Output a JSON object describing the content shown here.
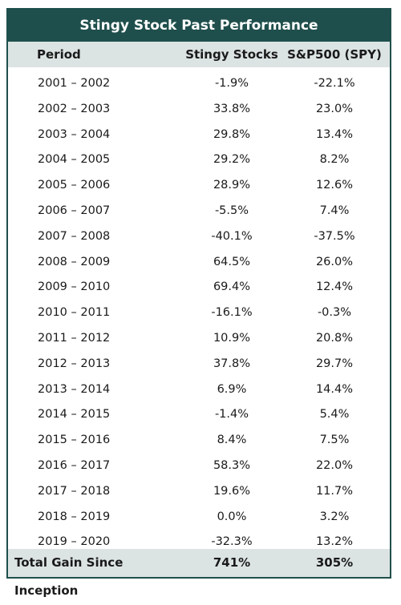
{
  "title": "Stingy Stock Past Performance",
  "headers": {
    "period": "Period",
    "stingy": "Stingy Stocks",
    "spy": "S&P500 (SPY)"
  },
  "rows": [
    {
      "period": "2001 – 2002",
      "stingy": "-1.9%",
      "spy": "-22.1%"
    },
    {
      "period": "2002 – 2003",
      "stingy": "33.8%",
      "spy": "23.0%"
    },
    {
      "period": "2003 – 2004",
      "stingy": "29.8%",
      "spy": "13.4%"
    },
    {
      "period": "2004 – 2005",
      "stingy": "29.2%",
      "spy": "8.2%"
    },
    {
      "period": "2005 – 2006",
      "stingy": "28.9%",
      "spy": "12.6%"
    },
    {
      "period": "2006 – 2007",
      "stingy": "-5.5%",
      "spy": "7.4%"
    },
    {
      "period": "2007 – 2008",
      "stingy": "-40.1%",
      "spy": "-37.5%"
    },
    {
      "period": "2008 – 2009",
      "stingy": "64.5%",
      "spy": "26.0%"
    },
    {
      "period": "2009 – 2010",
      "stingy": "69.4%",
      "spy": "12.4%"
    },
    {
      "period": "2010 – 2011",
      "stingy": "-16.1%",
      "spy": "-0.3%"
    },
    {
      "period": "2011 – 2012",
      "stingy": "10.9%",
      "spy": "20.8%"
    },
    {
      "period": "2012 – 2013",
      "stingy": "37.8%",
      "spy": "29.7%"
    },
    {
      "period": "2013 – 2014",
      "stingy": "6.9%",
      "spy": "14.4%"
    },
    {
      "period": "2014 – 2015",
      "stingy": "-1.4%",
      "spy": "5.4%"
    },
    {
      "period": "2015 – 2016",
      "stingy": "8.4%",
      "spy": "7.5%"
    },
    {
      "period": "2016 – 2017",
      "stingy": "58.3%",
      "spy": "22.0%"
    },
    {
      "period": "2017 – 2018",
      "stingy": "19.6%",
      "spy": "11.7%"
    },
    {
      "period": "2018 – 2019",
      "stingy": "0.0%",
      "spy": "3.2%"
    },
    {
      "period": "2019 – 2020",
      "stingy": "-32.3%",
      "spy": "13.2%"
    }
  ],
  "total": {
    "label": "Total Gain Since Inception",
    "stingy": "741%",
    "spy": "305%"
  },
  "colors": {
    "header_bg": "#1f4f4c",
    "band_bg": "#dce4e3"
  }
}
